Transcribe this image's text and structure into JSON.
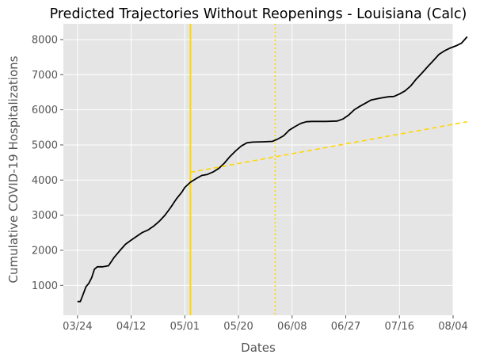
{
  "chart_data": {
    "type": "line",
    "title": "Predicted Trajectories Without Reopenings - Louisiana (Calc)",
    "xlabel": "Dates",
    "ylabel": "Cumulative COVID-19 Hospitalizations",
    "x_tick_labels": [
      "03/24",
      "04/12",
      "05/01",
      "05/20",
      "06/08",
      "06/27",
      "07/16",
      "08/04"
    ],
    "x_tick_dates": [
      "2020-03-24",
      "2020-04-12",
      "2020-05-01",
      "2020-05-20",
      "2020-06-08",
      "2020-06-27",
      "2020-07-16",
      "2020-08-04"
    ],
    "xlim": [
      "2020-03-19",
      "2020-08-04"
    ],
    "y_ticks": [
      1000,
      2000,
      3000,
      4000,
      5000,
      6000,
      7000,
      8000
    ],
    "y_tick_labels": [
      "1000",
      "2000",
      "3000",
      "4000",
      "5000",
      "6000",
      "7000",
      "8000"
    ],
    "ylim": [
      150,
      8450
    ],
    "grid": true,
    "style": "ggplot",
    "colors": {
      "background": "#e5e5e5",
      "grid": "#ffffff",
      "actual": "#000000",
      "predicted": "#ffd700",
      "reopen": "#ffd700"
    },
    "vertical_lines": [
      {
        "date": "2020-05-03",
        "style": "solid",
        "color": "#ffd700"
      },
      {
        "date": "2020-06-02",
        "style": "dotted",
        "color": "#ffd700"
      }
    ],
    "series": [
      {
        "style": "solid",
        "color": "#000000",
        "points": [
          [
            "2020-03-24",
            540
          ],
          [
            "2020-03-25",
            540
          ],
          [
            "2020-03-26",
            750
          ],
          [
            "2020-03-27",
            960
          ],
          [
            "2020-03-28",
            1060
          ],
          [
            "2020-03-29",
            1220
          ],
          [
            "2020-03-30",
            1460
          ],
          [
            "2020-03-31",
            1530
          ],
          [
            "2020-04-02",
            1530
          ],
          [
            "2020-04-04",
            1560
          ],
          [
            "2020-04-06",
            1800
          ],
          [
            "2020-04-08",
            1990
          ],
          [
            "2020-04-10",
            2170
          ],
          [
            "2020-04-12",
            2290
          ],
          [
            "2020-04-14",
            2400
          ],
          [
            "2020-04-16",
            2510
          ],
          [
            "2020-04-18",
            2580
          ],
          [
            "2020-04-20",
            2690
          ],
          [
            "2020-04-22",
            2830
          ],
          [
            "2020-04-24",
            3000
          ],
          [
            "2020-04-26",
            3220
          ],
          [
            "2020-04-28",
            3460
          ],
          [
            "2020-04-30",
            3660
          ],
          [
            "2020-05-01",
            3790
          ],
          [
            "2020-05-03",
            3940
          ],
          [
            "2020-05-05",
            4040
          ],
          [
            "2020-05-07",
            4130
          ],
          [
            "2020-05-09",
            4160
          ],
          [
            "2020-05-11",
            4230
          ],
          [
            "2020-05-13",
            4330
          ],
          [
            "2020-05-15",
            4480
          ],
          [
            "2020-05-17",
            4670
          ],
          [
            "2020-05-19",
            4830
          ],
          [
            "2020-05-21",
            4970
          ],
          [
            "2020-05-23",
            5060
          ],
          [
            "2020-05-25",
            5080
          ],
          [
            "2020-05-29",
            5090
          ],
          [
            "2020-06-01",
            5100
          ],
          [
            "2020-06-03",
            5170
          ],
          [
            "2020-06-05",
            5260
          ],
          [
            "2020-06-07",
            5420
          ],
          [
            "2020-06-09",
            5520
          ],
          [
            "2020-06-11",
            5610
          ],
          [
            "2020-06-13",
            5660
          ],
          [
            "2020-06-15",
            5670
          ],
          [
            "2020-06-20",
            5670
          ],
          [
            "2020-06-24",
            5680
          ],
          [
            "2020-06-26",
            5740
          ],
          [
            "2020-06-28",
            5850
          ],
          [
            "2020-06-30",
            6000
          ],
          [
            "2020-07-02",
            6100
          ],
          [
            "2020-07-04",
            6190
          ],
          [
            "2020-07-06",
            6280
          ],
          [
            "2020-07-09",
            6330
          ],
          [
            "2020-07-12",
            6370
          ],
          [
            "2020-07-14",
            6380
          ],
          [
            "2020-07-16",
            6450
          ],
          [
            "2020-07-18",
            6540
          ],
          [
            "2020-07-20",
            6680
          ],
          [
            "2020-07-22",
            6880
          ],
          [
            "2020-07-24",
            7050
          ],
          [
            "2020-07-26",
            7230
          ],
          [
            "2020-07-28",
            7400
          ],
          [
            "2020-07-30",
            7580
          ],
          [
            "2020-08-01",
            7680
          ],
          [
            "2020-08-03",
            7760
          ],
          [
            "2020-08-05",
            7820
          ],
          [
            "2020-08-07",
            7900
          ],
          [
            "2020-08-09",
            8080
          ]
        ]
      },
      {
        "style": "dashed",
        "color": "#ffd700",
        "points": [
          [
            "2020-05-03",
            4220
          ],
          [
            "2020-08-09",
            5660
          ]
        ]
      }
    ]
  }
}
